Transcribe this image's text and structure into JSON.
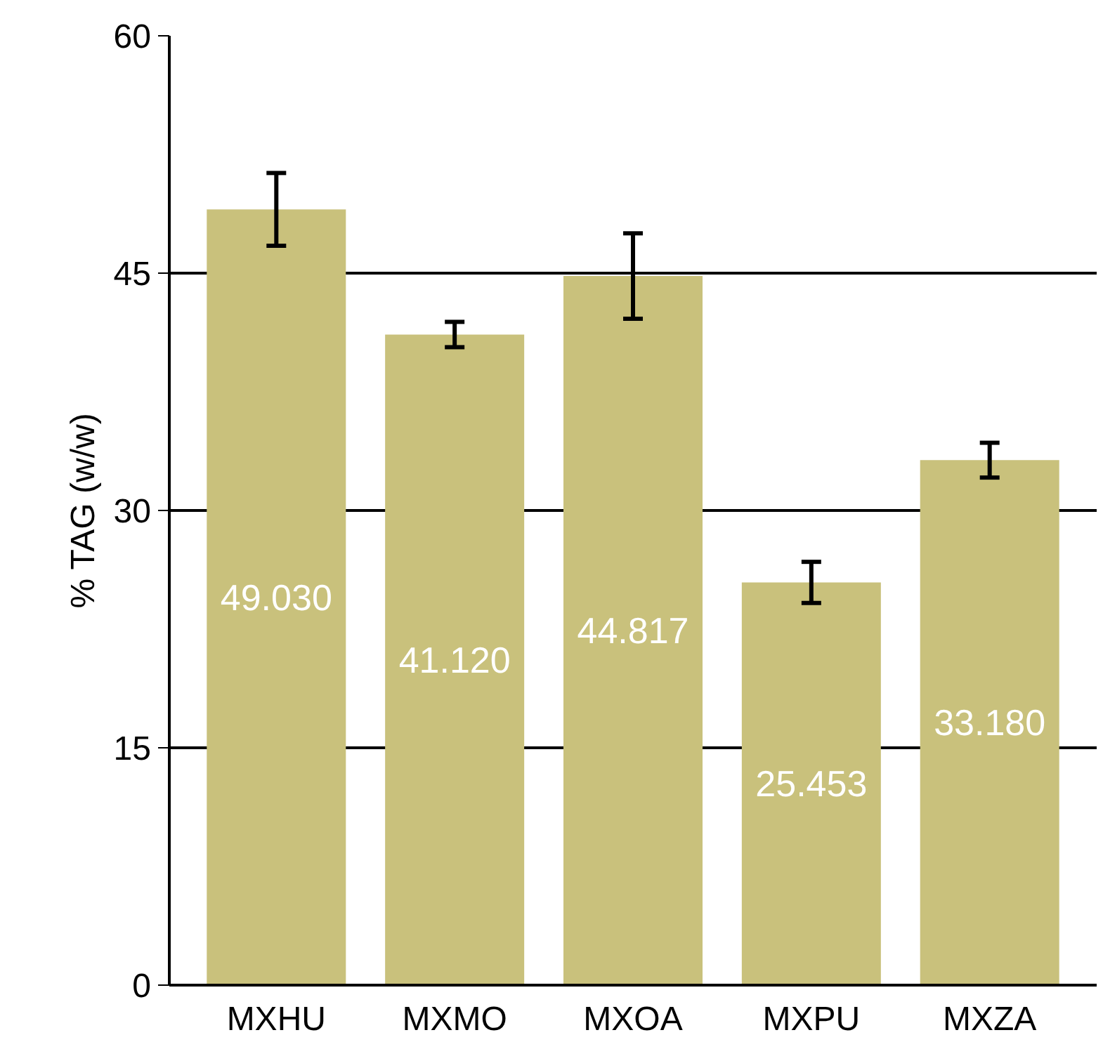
{
  "chart_data": {
    "type": "bar",
    "ylabel": "% TAG (w/w)",
    "categories": [
      "MXHU",
      "MXMO",
      "MXOA",
      "MXPU",
      "MXZA"
    ],
    "values": [
      49.03,
      41.12,
      44.817,
      25.453,
      33.18
    ],
    "errors": [
      2.3,
      0.8,
      2.7,
      1.3,
      1.1
    ],
    "value_labels": [
      "49.030",
      "41.120",
      "44.817",
      "25.453",
      "33.180"
    ],
    "color": "#c9c17c",
    "ylim": [
      0,
      60
    ],
    "yticks": [
      0,
      15,
      30,
      45,
      60
    ],
    "grid": "y"
  }
}
